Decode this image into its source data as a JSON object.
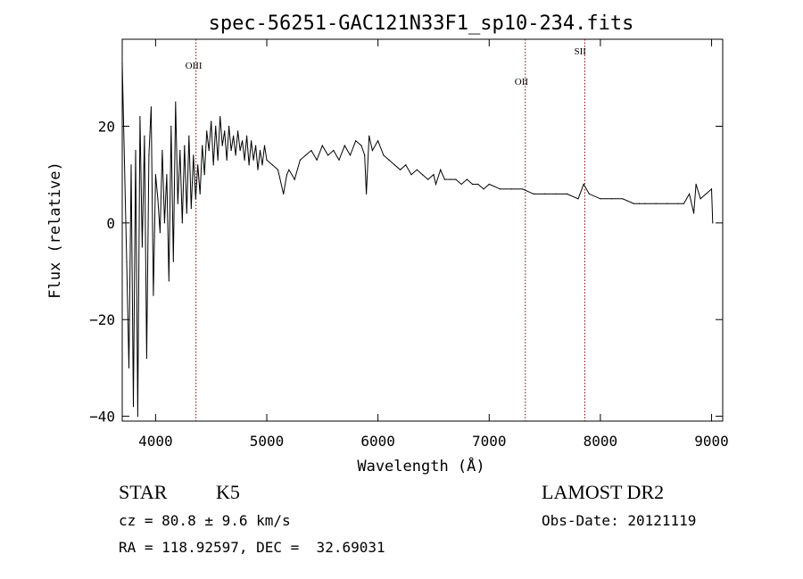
{
  "chart_data": {
    "type": "line",
    "title": "spec-56251-GAC121N33F1_sp10-234.fits",
    "xlabel": "Wavelength (Å)",
    "ylabel": "Flux (relative)",
    "xlim": [
      3700,
      9100
    ],
    "ylim": [
      -41,
      38
    ],
    "xticks": [
      4000,
      5000,
      6000,
      7000,
      8000,
      9000
    ],
    "yticks": [
      -40,
      -20,
      0,
      20
    ],
    "ytick_labels": [
      "−40",
      "−20",
      "0",
      "20"
    ],
    "grid": false,
    "line_color": "#000000",
    "marker_color": "#8b0000",
    "line_markers": [
      {
        "label": "OIII",
        "x": 4363
      },
      {
        "label": "OII",
        "x": 7325
      },
      {
        "label": "SII",
        "x": 7860
      }
    ],
    "series": [
      {
        "x": [
          3700,
          3740,
          3760,
          3780,
          3800,
          3820,
          3840,
          3860,
          3880,
          3900,
          3920,
          3940,
          3960,
          3980,
          4000,
          4020,
          4040,
          4060,
          4080,
          4100,
          4120,
          4140,
          4160,
          4180,
          4200,
          4220,
          4240,
          4260,
          4280,
          4300,
          4320,
          4340,
          4360,
          4380,
          4400,
          4420,
          4440,
          4460,
          4480,
          4500,
          4520,
          4540,
          4560,
          4580,
          4600,
          4620,
          4640,
          4660,
          4680,
          4700,
          4720,
          4740,
          4760,
          4780,
          4800,
          4820,
          4840,
          4860,
          4880,
          4900,
          4920,
          4940,
          4960,
          4980,
          5000,
          5050,
          5100,
          5150,
          5180,
          5200,
          5250,
          5300,
          5350,
          5400,
          5450,
          5500,
          5550,
          5600,
          5650,
          5700,
          5750,
          5800,
          5850,
          5880,
          5895,
          5920,
          5950,
          6000,
          6050,
          6100,
          6150,
          6200,
          6250,
          6300,
          6350,
          6400,
          6450,
          6500,
          6520,
          6562,
          6600,
          6650,
          6700,
          6750,
          6800,
          6850,
          6900,
          6950,
          7000,
          7100,
          7200,
          7300,
          7400,
          7500,
          7600,
          7700,
          7800,
          7850,
          7900,
          8000,
          8100,
          8200,
          8300,
          8350,
          8400,
          8500,
          8600,
          8700,
          8750,
          8800,
          8840,
          8860,
          8900,
          8950,
          9000,
          9010
        ],
        "values": [
          33,
          -8,
          -30,
          12,
          -38,
          15,
          -40,
          22,
          -5,
          18,
          -28,
          14,
          24,
          -15,
          10,
          5,
          -2,
          15,
          0,
          10,
          -12,
          20,
          -8,
          25,
          4,
          15,
          0,
          16,
          2,
          18,
          3,
          14,
          5,
          12,
          6,
          16,
          10,
          19,
          15,
          21,
          12,
          20,
          13,
          22,
          16,
          19,
          13,
          20,
          15,
          18,
          14,
          19,
          15,
          17,
          13,
          18,
          12,
          17,
          13,
          16,
          11,
          15,
          12,
          16,
          13,
          12,
          11,
          6,
          10,
          11,
          9,
          13,
          14,
          15,
          13,
          16,
          14,
          15,
          13,
          16,
          14,
          17,
          16,
          14,
          6,
          18,
          15,
          17,
          14,
          13,
          12,
          11,
          12,
          10,
          11,
          10,
          9,
          10,
          8,
          11,
          9,
          9,
          9,
          8,
          9,
          8,
          8,
          7,
          8,
          7,
          7,
          7,
          6,
          6,
          6,
          6,
          5,
          8,
          6,
          5,
          5,
          5,
          4,
          4,
          4,
          4,
          4,
          4,
          4,
          6,
          2,
          8,
          5,
          6,
          7,
          0
        ]
      }
    ]
  },
  "info": {
    "object_type": "STAR",
    "subclass": "K5",
    "survey": "LAMOST DR2",
    "cz": "cz = 80.8 ± 9.6 km/s",
    "coords": "RA = 118.92597, DEC =  32.69031",
    "obs_date": "Obs-Date: 20121119"
  }
}
